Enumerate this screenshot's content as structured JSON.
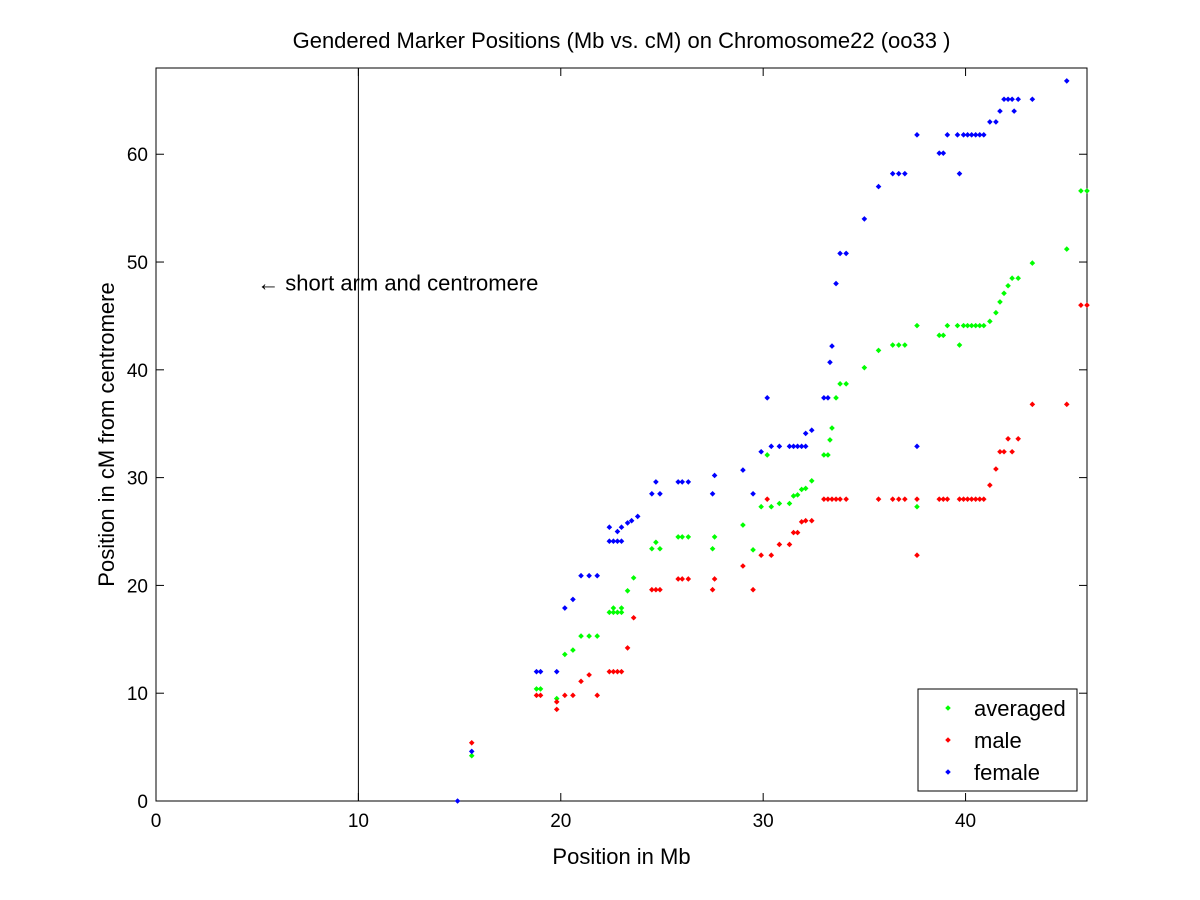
{
  "chart_data": {
    "type": "scatter",
    "title": "Gendered Marker Positions (Mb vs. cM) on Chromosome22 (oo33 )",
    "xlabel": "Position in Mb",
    "ylabel": "Position in cM from centromere",
    "xlim": [
      0,
      46
    ],
    "ylim": [
      0,
      68
    ],
    "xticks": [
      "0",
      "10",
      "20",
      "30",
      "40"
    ],
    "xtick_values": [
      0,
      10,
      20,
      30,
      40
    ],
    "yticks": [
      "0",
      "10",
      "20",
      "30",
      "40",
      "50",
      "60"
    ],
    "ytick_values": [
      0,
      10,
      20,
      30,
      40,
      50,
      60
    ],
    "grid": false,
    "legend_position": "bottom-right",
    "annotation": {
      "text": "← short arm and centromere",
      "x": 5,
      "y": 48
    },
    "vertical_line_x": 10,
    "series": [
      {
        "name": "averaged",
        "color": "#00ff00",
        "points": [
          [
            15.6,
            4.2
          ],
          [
            18.8,
            10.4
          ],
          [
            19.0,
            10.4
          ],
          [
            19.8,
            9.5
          ],
          [
            20.2,
            13.6
          ],
          [
            20.6,
            14.0
          ],
          [
            21.0,
            15.3
          ],
          [
            21.4,
            15.3
          ],
          [
            21.8,
            15.3
          ],
          [
            22.4,
            17.5
          ],
          [
            22.6,
            17.5
          ],
          [
            22.8,
            17.5
          ],
          [
            23.0,
            17.5
          ],
          [
            22.6,
            17.9
          ],
          [
            23.0,
            17.9
          ],
          [
            23.3,
            19.5
          ],
          [
            23.6,
            20.7
          ],
          [
            24.5,
            23.4
          ],
          [
            24.7,
            24.0
          ],
          [
            24.9,
            23.4
          ],
          [
            25.8,
            24.5
          ],
          [
            26.0,
            24.5
          ],
          [
            26.3,
            24.5
          ],
          [
            27.5,
            23.4
          ],
          [
            27.6,
            24.5
          ],
          [
            29.0,
            25.6
          ],
          [
            29.5,
            23.3
          ],
          [
            29.9,
            27.3
          ],
          [
            30.4,
            27.3
          ],
          [
            30.2,
            32.1
          ],
          [
            30.8,
            27.6
          ],
          [
            31.3,
            27.6
          ],
          [
            31.5,
            28.3
          ],
          [
            31.7,
            28.4
          ],
          [
            31.9,
            28.9
          ],
          [
            32.1,
            29.0
          ],
          [
            32.4,
            29.7
          ],
          [
            33.0,
            32.1
          ],
          [
            33.2,
            32.1
          ],
          [
            33.3,
            33.5
          ],
          [
            33.4,
            34.6
          ],
          [
            33.6,
            37.4
          ],
          [
            33.8,
            38.7
          ],
          [
            34.1,
            38.7
          ],
          [
            35.0,
            40.2
          ],
          [
            35.7,
            41.8
          ],
          [
            36.4,
            42.3
          ],
          [
            36.7,
            42.3
          ],
          [
            37.0,
            42.3
          ],
          [
            37.6,
            44.1
          ],
          [
            37.6,
            27.3
          ],
          [
            38.7,
            43.2
          ],
          [
            38.9,
            43.2
          ],
          [
            39.1,
            44.1
          ],
          [
            39.6,
            44.1
          ],
          [
            39.7,
            42.3
          ],
          [
            39.9,
            44.1
          ],
          [
            40.1,
            44.1
          ],
          [
            40.3,
            44.1
          ],
          [
            40.5,
            44.1
          ],
          [
            40.7,
            44.1
          ],
          [
            40.9,
            44.1
          ],
          [
            41.2,
            44.5
          ],
          [
            41.5,
            45.3
          ],
          [
            41.7,
            46.3
          ],
          [
            41.9,
            47.1
          ],
          [
            42.1,
            47.8
          ],
          [
            42.3,
            48.5
          ],
          [
            42.6,
            48.5
          ],
          [
            43.3,
            49.9
          ],
          [
            45.0,
            51.2
          ],
          [
            45.7,
            56.6
          ],
          [
            46.0,
            56.6
          ]
        ]
      },
      {
        "name": "male",
        "color": "#ff0000",
        "points": [
          [
            15.6,
            5.4
          ],
          [
            18.8,
            9.8
          ],
          [
            19.0,
            9.8
          ],
          [
            19.8,
            8.5
          ],
          [
            19.8,
            9.2
          ],
          [
            20.2,
            9.8
          ],
          [
            20.6,
            9.8
          ],
          [
            21.0,
            11.1
          ],
          [
            21.4,
            11.7
          ],
          [
            21.8,
            9.8
          ],
          [
            22.4,
            12.0
          ],
          [
            22.6,
            12.0
          ],
          [
            22.8,
            12.0
          ],
          [
            23.0,
            12.0
          ],
          [
            23.3,
            14.2
          ],
          [
            23.6,
            17.0
          ],
          [
            24.5,
            19.6
          ],
          [
            24.7,
            19.6
          ],
          [
            24.9,
            19.6
          ],
          [
            25.8,
            20.6
          ],
          [
            26.0,
            20.6
          ],
          [
            26.3,
            20.6
          ],
          [
            27.5,
            19.6
          ],
          [
            27.6,
            20.6
          ],
          [
            29.0,
            21.8
          ],
          [
            29.5,
            19.6
          ],
          [
            29.9,
            22.8
          ],
          [
            30.4,
            22.8
          ],
          [
            30.2,
            28.0
          ],
          [
            30.8,
            23.8
          ],
          [
            31.3,
            23.8
          ],
          [
            31.5,
            24.9
          ],
          [
            31.7,
            24.9
          ],
          [
            31.9,
            25.9
          ],
          [
            32.1,
            26.0
          ],
          [
            32.4,
            26.0
          ],
          [
            33.0,
            28.0
          ],
          [
            33.2,
            28.0
          ],
          [
            33.4,
            28.0
          ],
          [
            33.6,
            28.0
          ],
          [
            33.8,
            28.0
          ],
          [
            34.1,
            28.0
          ],
          [
            35.7,
            28.0
          ],
          [
            36.4,
            28.0
          ],
          [
            36.7,
            28.0
          ],
          [
            37.0,
            28.0
          ],
          [
            37.6,
            28.0
          ],
          [
            37.6,
            22.8
          ],
          [
            38.7,
            28.0
          ],
          [
            38.9,
            28.0
          ],
          [
            39.1,
            28.0
          ],
          [
            39.7,
            28.0
          ],
          [
            39.9,
            28.0
          ],
          [
            40.1,
            28.0
          ],
          [
            40.3,
            28.0
          ],
          [
            40.5,
            28.0
          ],
          [
            40.7,
            28.0
          ],
          [
            40.9,
            28.0
          ],
          [
            41.2,
            29.3
          ],
          [
            41.5,
            30.8
          ],
          [
            41.7,
            32.4
          ],
          [
            41.9,
            32.4
          ],
          [
            42.1,
            33.6
          ],
          [
            42.3,
            32.4
          ],
          [
            42.6,
            33.6
          ],
          [
            43.3,
            36.8
          ],
          [
            45.0,
            36.8
          ],
          [
            45.7,
            46.0
          ],
          [
            46.0,
            46.0
          ]
        ]
      },
      {
        "name": "female",
        "color": "#0000ff",
        "points": [
          [
            14.9,
            0.0
          ],
          [
            15.6,
            4.6
          ],
          [
            18.8,
            12.0
          ],
          [
            19.0,
            12.0
          ],
          [
            19.8,
            12.0
          ],
          [
            20.2,
            17.9
          ],
          [
            20.6,
            18.7
          ],
          [
            21.0,
            20.9
          ],
          [
            21.4,
            20.9
          ],
          [
            21.8,
            20.9
          ],
          [
            22.4,
            24.1
          ],
          [
            22.6,
            24.1
          ],
          [
            22.8,
            24.1
          ],
          [
            23.0,
            24.1
          ],
          [
            22.4,
            25.4
          ],
          [
            22.8,
            25.0
          ],
          [
            23.0,
            25.4
          ],
          [
            23.3,
            25.8
          ],
          [
            23.5,
            26.0
          ],
          [
            23.8,
            26.4
          ],
          [
            24.5,
            28.5
          ],
          [
            24.7,
            29.6
          ],
          [
            24.9,
            28.5
          ],
          [
            25.8,
            29.6
          ],
          [
            26.0,
            29.6
          ],
          [
            26.3,
            29.6
          ],
          [
            27.5,
            28.5
          ],
          [
            27.6,
            30.2
          ],
          [
            29.0,
            30.7
          ],
          [
            29.5,
            28.5
          ],
          [
            29.9,
            32.4
          ],
          [
            30.2,
            37.4
          ],
          [
            30.4,
            32.9
          ],
          [
            30.8,
            32.9
          ],
          [
            31.3,
            32.9
          ],
          [
            31.5,
            32.9
          ],
          [
            31.7,
            32.9
          ],
          [
            31.9,
            32.9
          ],
          [
            32.1,
            32.9
          ],
          [
            32.1,
            34.1
          ],
          [
            32.4,
            34.4
          ],
          [
            33.0,
            37.4
          ],
          [
            33.2,
            37.4
          ],
          [
            33.3,
            40.7
          ],
          [
            33.4,
            42.2
          ],
          [
            33.6,
            48.0
          ],
          [
            33.8,
            50.8
          ],
          [
            34.1,
            50.8
          ],
          [
            35.0,
            54.0
          ],
          [
            35.7,
            57.0
          ],
          [
            36.4,
            58.2
          ],
          [
            36.7,
            58.2
          ],
          [
            37.0,
            58.2
          ],
          [
            37.6,
            61.8
          ],
          [
            37.6,
            32.9
          ],
          [
            38.7,
            60.1
          ],
          [
            38.9,
            60.1
          ],
          [
            39.1,
            61.8
          ],
          [
            39.6,
            61.8
          ],
          [
            39.7,
            58.2
          ],
          [
            39.9,
            61.8
          ],
          [
            40.1,
            61.8
          ],
          [
            40.3,
            61.8
          ],
          [
            40.5,
            61.8
          ],
          [
            40.7,
            61.8
          ],
          [
            40.9,
            61.8
          ],
          [
            41.2,
            63.0
          ],
          [
            41.5,
            63.0
          ],
          [
            41.7,
            64.0
          ],
          [
            41.9,
            65.1
          ],
          [
            42.1,
            65.1
          ],
          [
            42.3,
            65.1
          ],
          [
            42.6,
            65.1
          ],
          [
            42.4,
            64.0
          ],
          [
            43.3,
            65.1
          ],
          [
            45.0,
            66.8
          ]
        ]
      }
    ]
  }
}
